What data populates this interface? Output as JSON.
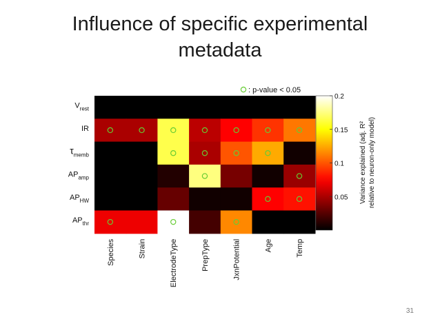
{
  "slide": {
    "title_line1": "Influence of specific experimental",
    "title_line2": "metadata",
    "page_number": "31"
  },
  "chart_data": {
    "type": "heatmap",
    "title": "",
    "rows": [
      {
        "main": "V",
        "sub": "rest",
        "greek": false
      },
      {
        "main": "IR",
        "sub": "",
        "greek": false
      },
      {
        "main": "τ",
        "sub": "memb",
        "greek": true
      },
      {
        "main": "AP",
        "sub": "amp",
        "greek": false
      },
      {
        "main": "AP",
        "sub": "HW",
        "greek": false
      },
      {
        "main": "AP",
        "sub": "thr",
        "greek": false
      }
    ],
    "columns": [
      "Species",
      "Strain",
      "ElectrodeType",
      "PrepType",
      "JxnPotential",
      "Age",
      "Temp"
    ],
    "values": [
      [
        0.0,
        0.0,
        0.0,
        0.0,
        0.0,
        0.0,
        0.0
      ],
      [
        0.05,
        0.05,
        0.165,
        0.055,
        0.075,
        0.09,
        0.11
      ],
      [
        0.0,
        0.0,
        0.165,
        0.05,
        0.1,
        0.125,
        0.005
      ],
      [
        0.0,
        0.0,
        0.01,
        0.175,
        0.035,
        0.005,
        0.045
      ],
      [
        0.0,
        0.0,
        0.03,
        0.005,
        0.005,
        0.075,
        0.08
      ],
      [
        0.07,
        0.07,
        0.2,
        0.02,
        0.115,
        0.0,
        0.0
      ]
    ],
    "significant": [
      [
        false,
        false,
        false,
        false,
        false,
        false,
        false
      ],
      [
        true,
        true,
        true,
        true,
        true,
        true,
        true
      ],
      [
        false,
        false,
        true,
        true,
        true,
        true,
        false
      ],
      [
        false,
        false,
        false,
        true,
        false,
        false,
        true
      ],
      [
        false,
        false,
        false,
        false,
        false,
        true,
        true
      ],
      [
        true,
        false,
        true,
        false,
        true,
        false,
        false
      ]
    ],
    "legend_marker_label": ": p-value < 0.05",
    "colorbar": {
      "min": 0,
      "max": 0.2,
      "ticks": [
        0.05,
        0.1,
        0.15,
        0.2
      ],
      "tick_labels": [
        "0.05",
        "0.1",
        "0.15",
        "0.2"
      ],
      "label_line1": "Variance explained (adj. R²",
      "label_line2": "relative to neuron-only model)",
      "colormap": "hot"
    },
    "marker_color": "#66cc33"
  }
}
